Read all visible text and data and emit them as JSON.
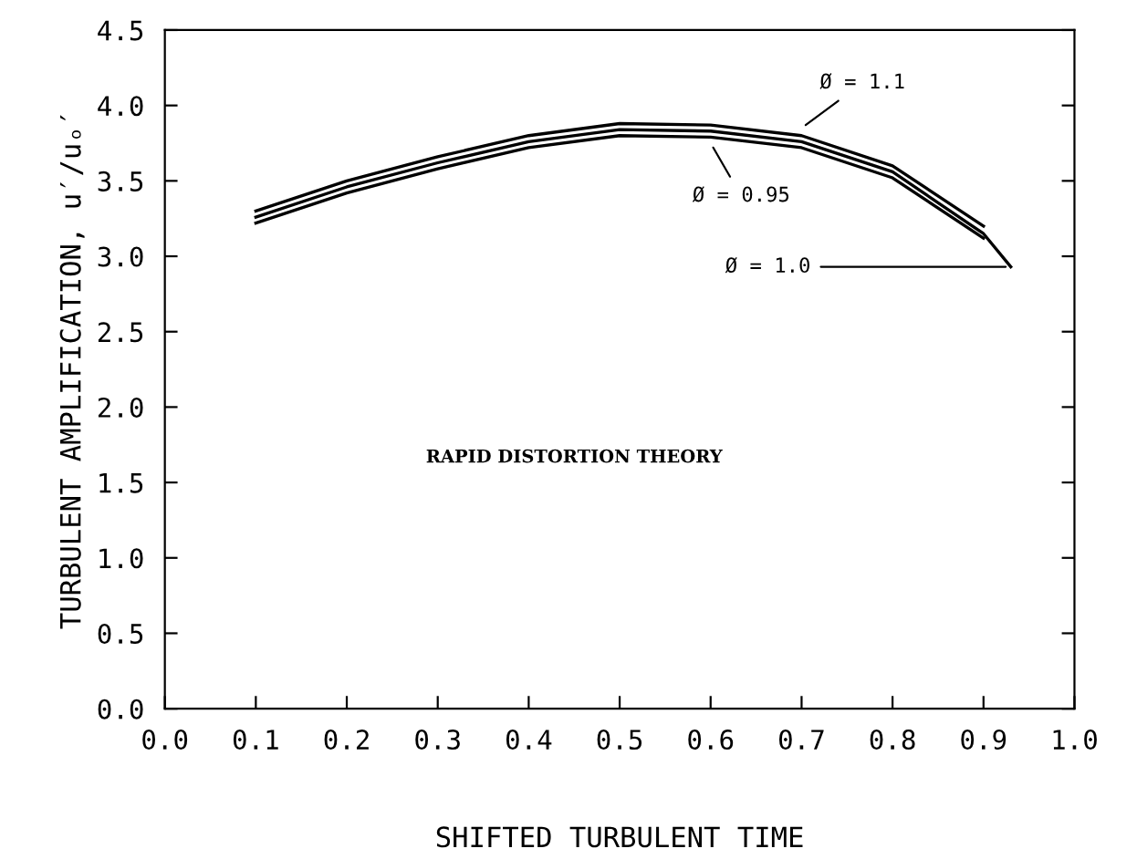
{
  "chart_data": {
    "type": "line",
    "xlabel": "SHIFTED TURBULENT TIME",
    "ylabel": "TURBULENT AMPLIFICATION, u′/uₒ′",
    "xlim": [
      0,
      1
    ],
    "ylim": [
      0,
      4.5
    ],
    "xticks": [
      {
        "value": 0,
        "label": "0.0"
      },
      {
        "value": 0.1,
        "label": "0.1"
      },
      {
        "value": 0.2,
        "label": "0.2"
      },
      {
        "value": 0.3,
        "label": "0.3"
      },
      {
        "value": 0.4,
        "label": "0.4"
      },
      {
        "value": 0.5,
        "label": "0.5"
      },
      {
        "value": 0.6,
        "label": "0.6"
      },
      {
        "value": 0.7,
        "label": "0.7"
      },
      {
        "value": 0.8,
        "label": "0.8"
      },
      {
        "value": 0.9,
        "label": "0.9"
      },
      {
        "value": 1,
        "label": "1.0"
      }
    ],
    "yticks": [
      {
        "value": 0,
        "label": "0.0"
      },
      {
        "value": 0.5,
        "label": "0.5"
      },
      {
        "value": 1,
        "label": "1.0"
      },
      {
        "value": 1.5,
        "label": "1.5"
      },
      {
        "value": 2,
        "label": "2.0"
      },
      {
        "value": 2.5,
        "label": "2.5"
      },
      {
        "value": 3,
        "label": "3.0"
      },
      {
        "value": 3.5,
        "label": "3.5"
      },
      {
        "value": 4,
        "label": "4.0"
      },
      {
        "value": 4.5,
        "label": "4.5"
      }
    ],
    "grid": false,
    "legend": false,
    "marker": "none",
    "line_style": "solid",
    "series": [
      {
        "color": "#000000",
        "x": [
          0.1,
          0.2,
          0.3,
          0.4,
          0.5,
          0.6,
          0.7,
          0.8,
          0.9
        ],
        "values": [
          3.3,
          3.5,
          3.66,
          3.8,
          3.88,
          3.87,
          3.8,
          3.6,
          3.2
        ]
      },
      {
        "color": "#000000",
        "x": [
          0.1,
          0.2,
          0.3,
          0.4,
          0.5,
          0.6,
          0.7,
          0.8,
          0.9,
          0.93
        ],
        "values": [
          3.26,
          3.46,
          3.62,
          3.76,
          3.84,
          3.83,
          3.76,
          3.56,
          3.15,
          2.93
        ]
      },
      {
        "color": "#000000",
        "x": [
          0.1,
          0.2,
          0.3,
          0.4,
          0.5,
          0.6,
          0.7,
          0.8,
          0.9
        ],
        "values": [
          3.22,
          3.42,
          3.58,
          3.72,
          3.8,
          3.79,
          3.72,
          3.52,
          3.12
        ]
      }
    ],
    "annotations": [
      {
        "text": "Ø = 1.1",
        "x": 0.7,
        "y": 3.85
      },
      {
        "text": "Ø = 0.95",
        "x": 0.6,
        "y": 3.75
      },
      {
        "text": "Ø = 1.0",
        "x": 0.93,
        "y": 2.93
      },
      "RAPID DISTORTION THEORY"
    ]
  }
}
